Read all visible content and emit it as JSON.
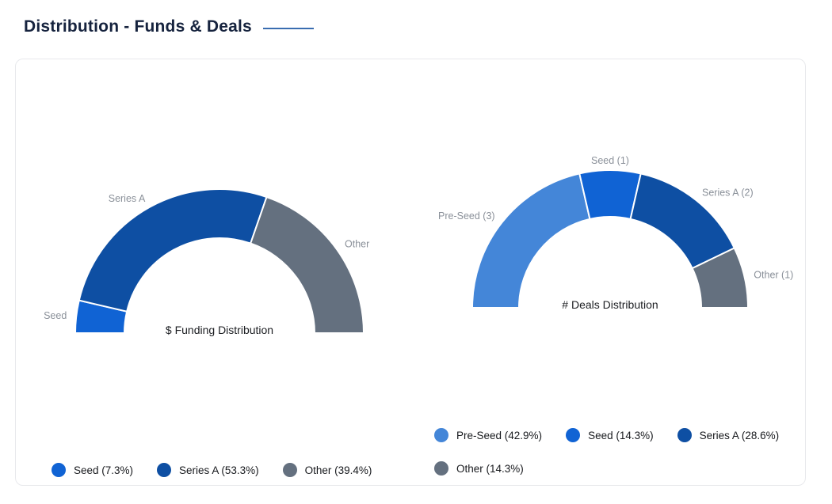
{
  "page": {
    "title": "Distribution - Funds & Deals"
  },
  "theme": {
    "title_color": "#16233E",
    "accent_line_color": "#3A6DB0",
    "card_border_color": "#E8E9EC",
    "arc_label_color": "#8A9099",
    "center_label_color": "#1C1E22",
    "legend_text_color": "#17191D",
    "segment_divider_color": "#FFFFFF"
  },
  "chart_data": [
    {
      "type": "pie",
      "subtype": "semi-donut",
      "title": "$ Funding Distribution",
      "categories": [
        "Seed",
        "Series A",
        "Other"
      ],
      "values": [
        7.3,
        53.3,
        39.4
      ],
      "unit": "percent",
      "colors": [
        "#1063D4",
        "#0E4FA3",
        "#64707F"
      ],
      "arc_labels": [
        "Seed",
        "Series A",
        "Other"
      ],
      "legend": [
        "Seed (7.3%)",
        "Series A (53.3%)",
        "Other (39.4%)"
      ],
      "legend_position": "bottom",
      "start_angle": 180,
      "end_angle": 0
    },
    {
      "type": "pie",
      "subtype": "semi-donut",
      "title": "# Deals Distribution",
      "categories": [
        "Pre-Seed",
        "Seed",
        "Series A",
        "Other"
      ],
      "values": [
        3,
        1,
        2,
        1
      ],
      "unit": "deals",
      "percentages": [
        42.9,
        14.3,
        28.6,
        14.3
      ],
      "colors": [
        "#4486D8",
        "#1063D4",
        "#0E4FA3",
        "#64707F"
      ],
      "arc_labels": [
        "Pre-Seed (3)",
        "Seed (1)",
        "Series A (2)",
        "Other (1)"
      ],
      "legend": [
        "Pre-Seed (42.9%)",
        "Seed (14.3%)",
        "Series A (28.6%)",
        "Other (14.3%)"
      ],
      "legend_position": "bottom",
      "legend_columns": 3,
      "start_angle": 180,
      "end_angle": 0
    }
  ]
}
